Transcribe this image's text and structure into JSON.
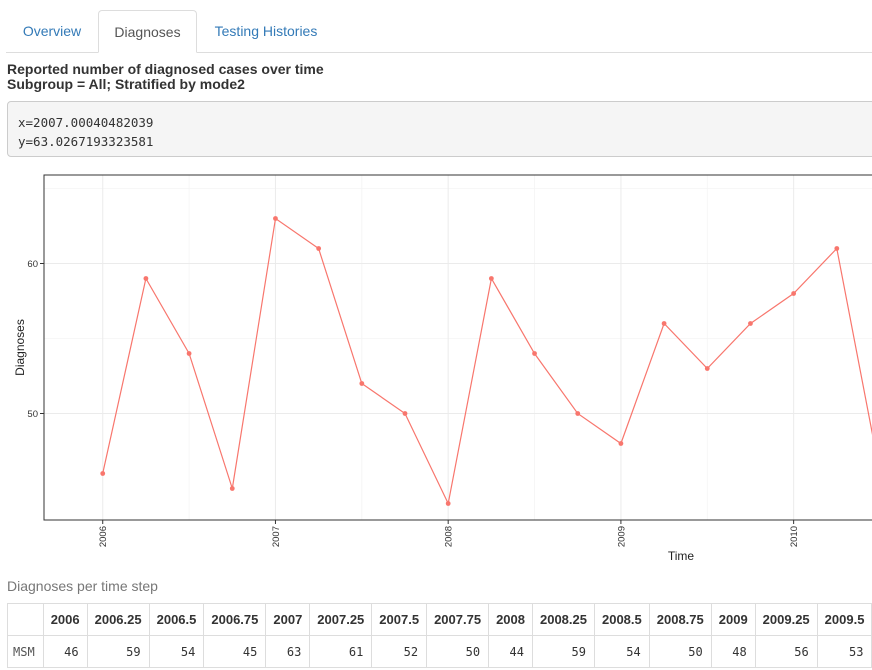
{
  "tabs": [
    {
      "label": "Overview",
      "active": false
    },
    {
      "label": "Diagnoses",
      "active": true
    },
    {
      "label": "Testing Histories",
      "active": false
    }
  ],
  "heading": {
    "line1": "Reported number of diagnosed cases over time",
    "line2": "Subgroup = All; Stratified by mode2"
  },
  "hover_readout": {
    "x": "x=2007.00040482039",
    "y": "y=63.0267193323581"
  },
  "colors": {
    "series": "#f8766d",
    "link": "#337ab7"
  },
  "chart_data": {
    "type": "line",
    "xlabel": "Time",
    "ylabel": "Diagnoses",
    "x_ticks": [
      2006,
      2007,
      2008,
      2009,
      2010
    ],
    "y_ticks": [
      50,
      60
    ],
    "xlim": [
      2005.66,
      2010.5
    ],
    "ylim": [
      42.9,
      65.9
    ],
    "grid": true,
    "series": [
      {
        "x": [
          2006,
          2006.25,
          2006.5,
          2006.75,
          2007,
          2007.25,
          2007.5,
          2007.75,
          2008,
          2008.25,
          2008.5,
          2008.75,
          2009,
          2009.25,
          2009.5,
          2009.75,
          2010,
          2010.25,
          2010.5
        ],
        "y": [
          46,
          59,
          54,
          45,
          63,
          61,
          52,
          50,
          44,
          59,
          54,
          50,
          48,
          56,
          53,
          56,
          58,
          61,
          46
        ]
      }
    ]
  },
  "table": {
    "title": "Diagnoses per time step",
    "row_label_header": "",
    "columns": [
      "2006",
      "2006.25",
      "2006.5",
      "2006.75",
      "2007",
      "2007.25",
      "2007.5",
      "2007.75",
      "2008",
      "2008.25",
      "2008.5",
      "2008.75",
      "2009",
      "2009.25",
      "2009.5"
    ],
    "rows": [
      {
        "label": "MSM",
        "values": [
          "46",
          "59",
          "54",
          "45",
          "63",
          "61",
          "52",
          "50",
          "44",
          "59",
          "54",
          "50",
          "48",
          "56",
          "53"
        ]
      }
    ]
  }
}
